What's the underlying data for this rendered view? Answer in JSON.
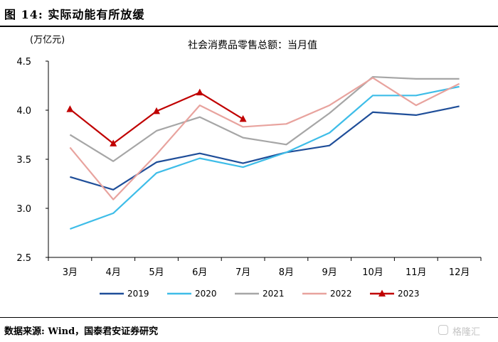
{
  "figure": {
    "title": "图 14:  实际动能有所放缓",
    "source": "数据来源:  Wind，国泰君安证券研究"
  },
  "watermark": {
    "icon": "gelonghui-logo-icon",
    "text": "格隆汇"
  },
  "chart_data": {
    "type": "line",
    "title": "社会消费品零售总额：当月值",
    "ylabel": "(万亿元)",
    "xlabel": "",
    "categories": [
      "3月",
      "4月",
      "5月",
      "6月",
      "7月",
      "8月",
      "9月",
      "10月",
      "11月",
      "12月"
    ],
    "ylim": [
      2.5,
      4.5
    ],
    "yticks": [
      "2.5",
      "3.0",
      "3.5",
      "4.0",
      "4.5"
    ],
    "grid": false,
    "legend": "bottom",
    "series": [
      {
        "name": "2019",
        "color": "#1f4e99",
        "marker": "none",
        "values": [
          3.32,
          3.19,
          3.47,
          3.56,
          3.46,
          3.57,
          3.64,
          3.98,
          3.95,
          4.04
        ]
      },
      {
        "name": "2020",
        "color": "#3ebde8",
        "marker": "none",
        "values": [
          2.79,
          2.95,
          3.36,
          3.51,
          3.42,
          3.57,
          3.77,
          4.15,
          4.15,
          4.24
        ]
      },
      {
        "name": "2021",
        "color": "#a6a6a6",
        "marker": "none",
        "values": [
          3.75,
          3.48,
          3.79,
          3.93,
          3.72,
          3.65,
          3.97,
          4.34,
          4.32,
          4.32
        ]
      },
      {
        "name": "2022",
        "color": "#e8a39e",
        "marker": "none",
        "values": [
          3.62,
          3.09,
          3.55,
          4.05,
          3.83,
          3.86,
          4.05,
          4.33,
          4.05,
          4.27
        ]
      },
      {
        "name": "2023",
        "color": "#c00000",
        "marker": "triangle",
        "values": [
          4.01,
          3.66,
          3.99,
          4.18,
          3.91,
          null,
          null,
          null,
          null,
          null
        ]
      }
    ]
  }
}
